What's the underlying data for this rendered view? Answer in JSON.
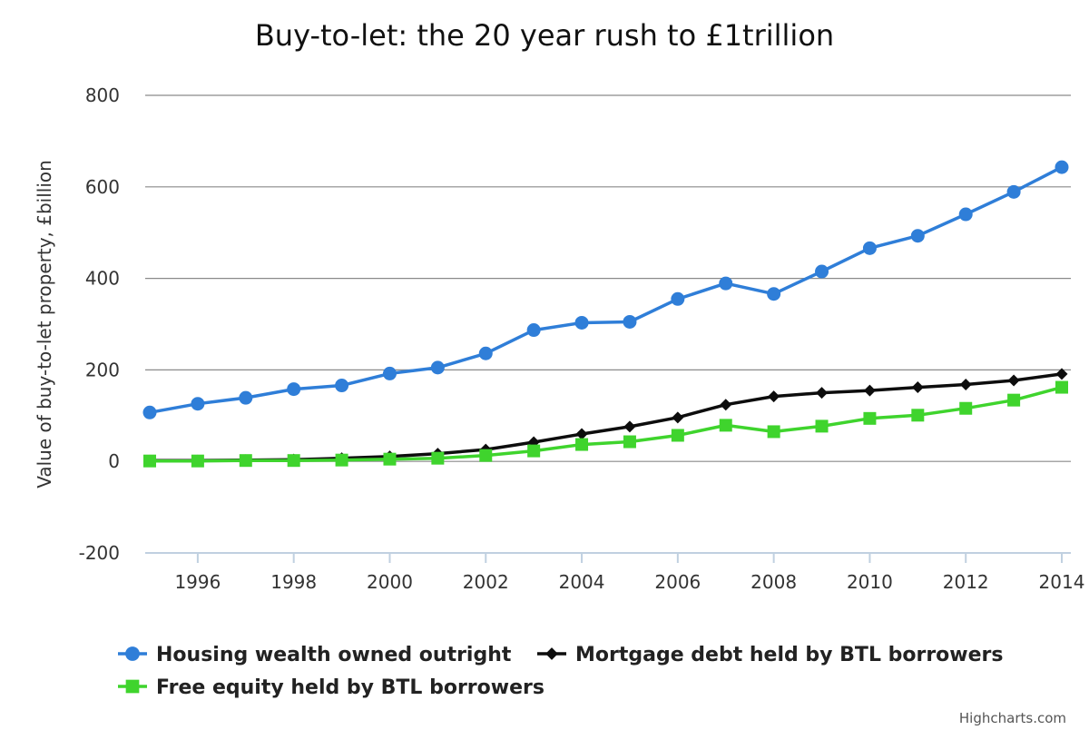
{
  "chart_data": {
    "type": "line",
    "title": "Buy-to-let: the 20 year rush to £1trillion",
    "ylabel": "Value of buy-to-let property, £billion",
    "xlabel": "",
    "xlim": [
      1995,
      2014
    ],
    "ylim": [
      -200,
      800
    ],
    "x_ticks": [
      "1996",
      "1998",
      "2000",
      "2002",
      "2004",
      "2006",
      "2008",
      "2010",
      "2012",
      "2014"
    ],
    "y_ticks": [
      "-200",
      "0",
      "200",
      "400",
      "600",
      "800"
    ],
    "grid": true,
    "legend_position": "bottom",
    "x": [
      1995,
      1996,
      1997,
      1998,
      1999,
      2000,
      2001,
      2002,
      2003,
      2004,
      2005,
      2006,
      2007,
      2008,
      2009,
      2010,
      2011,
      2012,
      2013,
      2014
    ],
    "series": [
      {
        "name": "Housing wealth owned outright",
        "color": "#2f7ed8",
        "marker": "circle",
        "values": [
          107,
          126,
          139,
          158,
          166,
          192,
          205,
          236,
          287,
          303,
          305,
          355,
          389,
          366,
          415,
          466,
          493,
          540,
          589,
          643
        ]
      },
      {
        "name": "Mortgage debt held by BTL borrowers",
        "color": "#0d0d0d",
        "marker": "diamond",
        "values": [
          2,
          2,
          3,
          4,
          7,
          11,
          17,
          26,
          42,
          60,
          76,
          96,
          124,
          142,
          150,
          155,
          162,
          168,
          177,
          191
        ]
      },
      {
        "name": "Free equity held by BTL borrowers",
        "color": "#3fd42d",
        "marker": "square",
        "values": [
          1,
          1,
          2,
          2,
          3,
          5,
          7,
          13,
          23,
          37,
          43,
          57,
          79,
          65,
          77,
          94,
          101,
          116,
          134,
          162
        ]
      }
    ]
  },
  "credits": "Highcharts.com"
}
